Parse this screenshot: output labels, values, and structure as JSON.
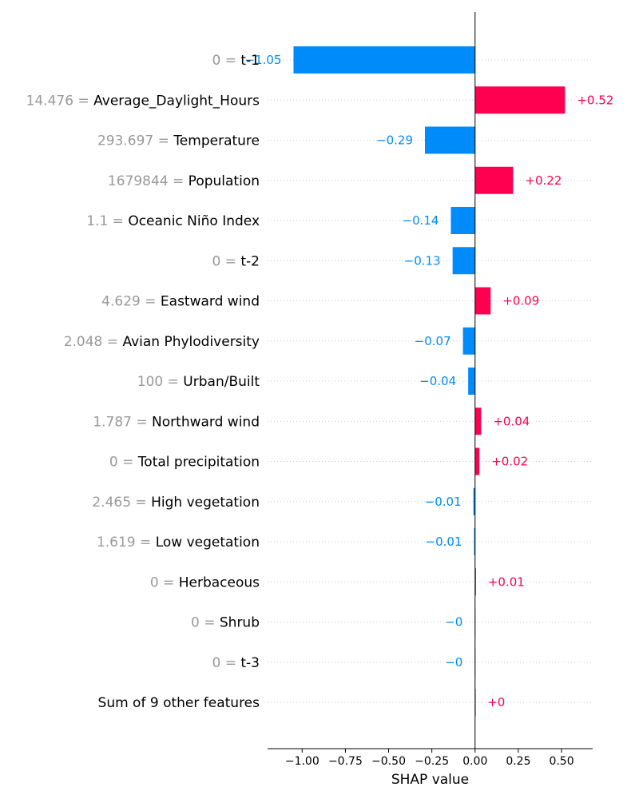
{
  "colors": {
    "positive": "#ff0051",
    "negative": "#008bfb",
    "feature_value": "#999999",
    "text": "#000000",
    "grid": "#cccccc"
  },
  "chart_data": {
    "type": "bar",
    "orientation": "horizontal",
    "xlabel": "SHAP value",
    "xlim": [
      -1.2,
      0.68
    ],
    "xticks": [
      -1.0,
      -0.75,
      -0.5,
      -0.25,
      0.0,
      0.25,
      0.5
    ],
    "xtick_labels": [
      "−1.00",
      "−0.75",
      "−0.50",
      "−0.25",
      "0.00",
      "0.25",
      "0.50"
    ],
    "grid": "horizontal dotted",
    "features": [
      {
        "value": "0",
        "name": "t-1",
        "shap": -1.05,
        "label": "−1.05"
      },
      {
        "value": "14.476",
        "name": "Average_Daylight_Hours",
        "shap": 0.52,
        "label": "+0.52"
      },
      {
        "value": "293.697",
        "name": "Temperature",
        "shap": -0.29,
        "label": "−0.29"
      },
      {
        "value": "1679844",
        "name": "Population",
        "shap": 0.22,
        "label": "+0.22"
      },
      {
        "value": "1.1",
        "name": "Oceanic Niño Index",
        "shap": -0.14,
        "label": "−0.14"
      },
      {
        "value": "0",
        "name": "t-2",
        "shap": -0.13,
        "label": "−0.13"
      },
      {
        "value": "4.629",
        "name": "Eastward wind",
        "shap": 0.09,
        "label": "+0.09"
      },
      {
        "value": "2.048",
        "name": "Avian Phylodiversity",
        "shap": -0.07,
        "label": "−0.07"
      },
      {
        "value": "100",
        "name": "Urban/Built",
        "shap": -0.04,
        "label": "−0.04"
      },
      {
        "value": "1.787",
        "name": "Northward wind",
        "shap": 0.035,
        "label": "+0.04"
      },
      {
        "value": "0",
        "name": "Total precipitation",
        "shap": 0.025,
        "label": "+0.02"
      },
      {
        "value": "2.465",
        "name": "High vegetation",
        "shap": -0.01,
        "label": "−0.01"
      },
      {
        "value": "1.619",
        "name": "Low vegetation",
        "shap": -0.006,
        "label": "−0.01"
      },
      {
        "value": "0",
        "name": "Herbaceous",
        "shap": 0.005,
        "label": "+0.01"
      },
      {
        "value": "0",
        "name": "Shrub",
        "shap": -0.002,
        "label": "−0"
      },
      {
        "value": "0",
        "name": "t-3",
        "shap": -0.002,
        "label": "−0"
      },
      {
        "value": "",
        "name": "Sum of 9 other features",
        "shap": 0.002,
        "label": "+0"
      }
    ]
  }
}
